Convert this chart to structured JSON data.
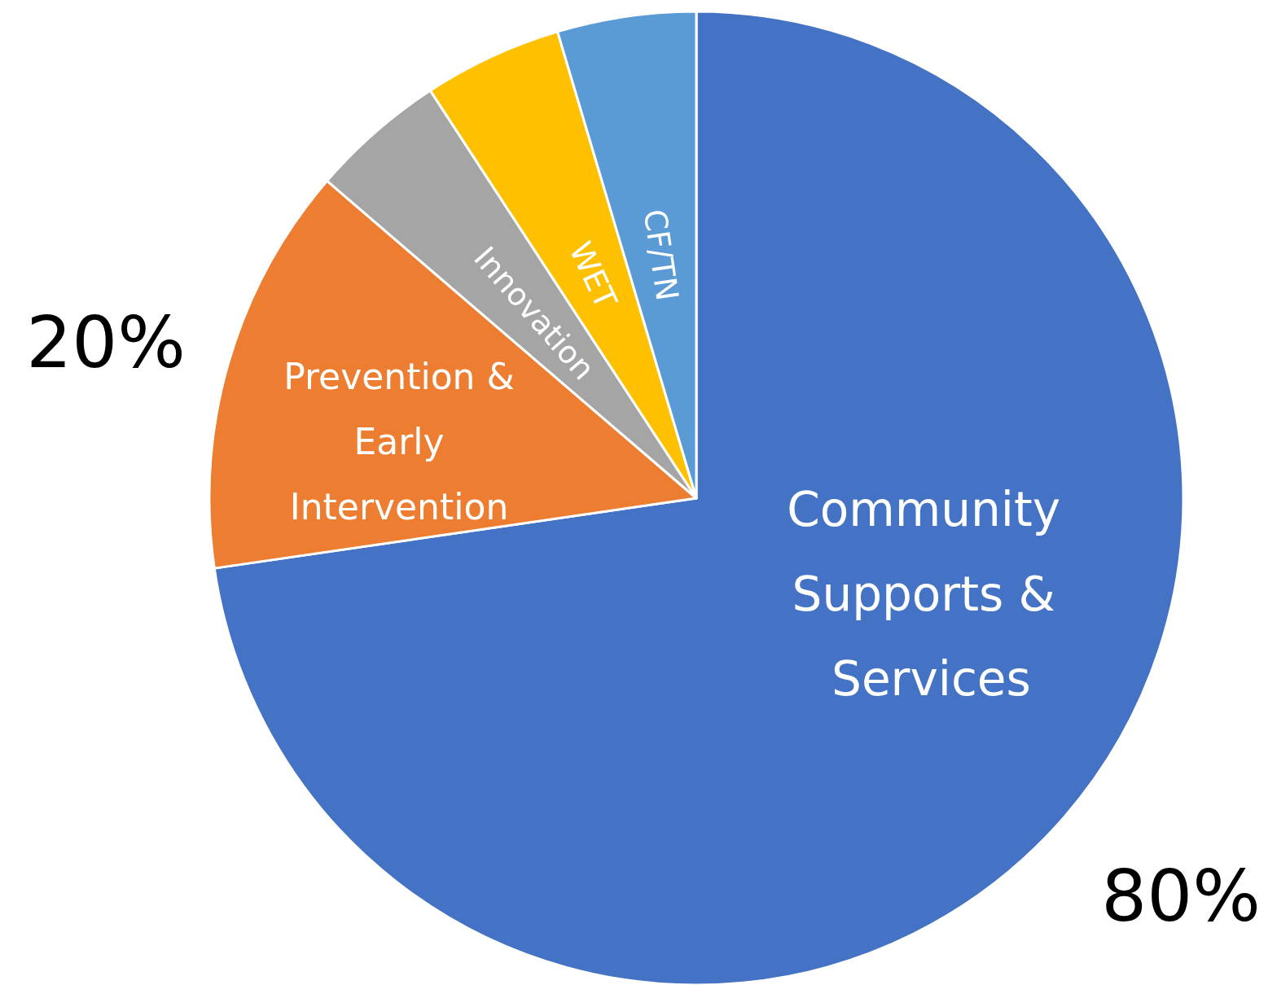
{
  "chart_data": {
    "type": "pie",
    "categories": [
      "Community Supports & Services",
      "Prevention & Early Intervention",
      "Innovation",
      "WET",
      "CF/TN"
    ],
    "values": [
      72.7,
      13.6,
      4.5,
      4.6,
      4.6
    ],
    "colors": [
      "#4472c4",
      "#ed7d31",
      "#a5a5a5",
      "#ffc000",
      "#5b9bd5"
    ],
    "annotations": [
      "80%",
      "20%"
    ]
  }
}
